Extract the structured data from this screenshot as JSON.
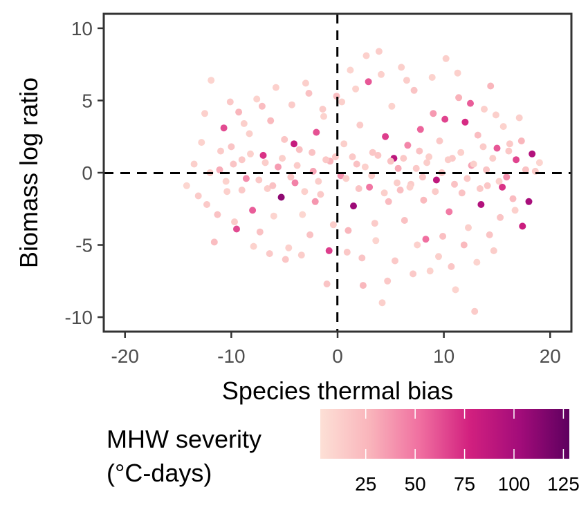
{
  "chart_data": {
    "type": "scatter",
    "title": "",
    "xlabel": "Species thermal bias",
    "ylabel": "Biomass log ratio",
    "xlim": [
      -22,
      22
    ],
    "ylim": [
      -11,
      11
    ],
    "x_ticks": [
      -20,
      -10,
      0,
      10,
      20
    ],
    "x_tick_labels": [
      "-20",
      "-10",
      "0",
      "10",
      "20"
    ],
    "y_ticks": [
      -10,
      -5,
      0,
      5,
      10
    ],
    "y_tick_labels": [
      "-10",
      "-5",
      "0",
      "5",
      "10"
    ],
    "reference_lines": [
      {
        "axis": "x",
        "value": 0,
        "style": "dashed"
      },
      {
        "axis": "y",
        "value": 0,
        "style": "dashed"
      }
    ],
    "grid": false,
    "color_variable": "MHW severity",
    "legend": {
      "title_lines": [
        "MHW severity",
        "(°C-days)"
      ],
      "position": "bottom",
      "range": [
        2,
        128
      ],
      "ticks": [
        25,
        50,
        75,
        100,
        125
      ],
      "tick_labels": [
        "25",
        "50",
        "75",
        "100",
        "125"
      ],
      "gradient": [
        "#fde0d6",
        "#f9b4bb",
        "#f06fa0",
        "#d2207f",
        "#a30c7a",
        "#5e005f"
      ]
    },
    "points": [
      {
        "x": -14.2,
        "y": -0.9,
        "c": 8
      },
      {
        "x": -13.5,
        "y": 0.6,
        "c": 12
      },
      {
        "x": -12.8,
        "y": 2.1,
        "c": 10
      },
      {
        "x": -12.3,
        "y": -2.2,
        "c": 15
      },
      {
        "x": -11.9,
        "y": 6.4,
        "c": 9
      },
      {
        "x": -11.6,
        "y": -4.8,
        "c": 22
      },
      {
        "x": -11.1,
        "y": 0.2,
        "c": 30
      },
      {
        "x": -10.7,
        "y": 3.1,
        "c": 64
      },
      {
        "x": -10.4,
        "y": -1.3,
        "c": 11
      },
      {
        "x": -10.0,
        "y": 1.8,
        "c": 18
      },
      {
        "x": -9.7,
        "y": -3.4,
        "c": 14
      },
      {
        "x": -9.3,
        "y": 4.2,
        "c": 26
      },
      {
        "x": -9.0,
        "y": 0.9,
        "c": 16
      },
      {
        "x": -8.6,
        "y": -0.4,
        "c": 42
      },
      {
        "x": -8.3,
        "y": 2.7,
        "c": 12
      },
      {
        "x": -8.0,
        "y": -2.6,
        "c": 58
      },
      {
        "x": -7.6,
        "y": 5.1,
        "c": 10
      },
      {
        "x": -7.3,
        "y": -4.1,
        "c": 20
      },
      {
        "x": -7.0,
        "y": 1.2,
        "c": 72
      },
      {
        "x": -6.6,
        "y": -1.1,
        "c": 13
      },
      {
        "x": -6.3,
        "y": 3.6,
        "c": 24
      },
      {
        "x": -6.0,
        "y": -3.0,
        "c": 9
      },
      {
        "x": -5.6,
        "y": 0.4,
        "c": 36
      },
      {
        "x": -5.3,
        "y": -1.7,
        "c": 110
      },
      {
        "x": -5.0,
        "y": 2.3,
        "c": 17
      },
      {
        "x": -4.6,
        "y": -5.2,
        "c": 11
      },
      {
        "x": -4.3,
        "y": 4.7,
        "c": 14
      },
      {
        "x": -4.0,
        "y": -0.7,
        "c": 46
      },
      {
        "x": -3.6,
        "y": 1.6,
        "c": 21
      },
      {
        "x": -3.3,
        "y": -2.9,
        "c": 8
      },
      {
        "x": -3.0,
        "y": 6.2,
        "c": 12
      },
      {
        "x": -2.6,
        "y": -4.3,
        "c": 19
      },
      {
        "x": -2.3,
        "y": 0.1,
        "c": 33
      },
      {
        "x": -2.0,
        "y": 2.8,
        "c": 62
      },
      {
        "x": -1.6,
        "y": -1.5,
        "c": 15
      },
      {
        "x": -1.3,
        "y": 3.9,
        "c": 10
      },
      {
        "x": -1.0,
        "y": -7.7,
        "c": 18
      },
      {
        "x": -0.7,
        "y": 0.8,
        "c": 27
      },
      {
        "x": -0.4,
        "y": -3.6,
        "c": 13
      },
      {
        "x": -0.1,
        "y": 5.3,
        "c": 22
      },
      {
        "x": 0.3,
        "y": -0.2,
        "c": 40
      },
      {
        "x": 0.6,
        "y": 2.0,
        "c": 12
      },
      {
        "x": 0.9,
        "y": -5.5,
        "c": 16
      },
      {
        "x": 1.2,
        "y": 7.1,
        "c": 9
      },
      {
        "x": 1.5,
        "y": -2.3,
        "c": 105
      },
      {
        "x": 1.8,
        "y": 0.6,
        "c": 20
      },
      {
        "x": 2.1,
        "y": 3.3,
        "c": 14
      },
      {
        "x": 2.4,
        "y": -7.8,
        "c": 25
      },
      {
        "x": 2.7,
        "y": 8.1,
        "c": 11
      },
      {
        "x": 3.0,
        "y": -1.0,
        "c": 50
      },
      {
        "x": 3.3,
        "y": 1.4,
        "c": 17
      },
      {
        "x": 3.6,
        "y": -4.7,
        "c": 9
      },
      {
        "x": 3.9,
        "y": 8.4,
        "c": 13
      },
      {
        "x": 4.2,
        "y": -9.0,
        "c": 12
      },
      {
        "x": 4.5,
        "y": 2.5,
        "c": 68
      },
      {
        "x": 4.8,
        "y": -2.0,
        "c": 23
      },
      {
        "x": 5.1,
        "y": 4.6,
        "c": 10
      },
      {
        "x": 5.4,
        "y": -6.1,
        "c": 15
      },
      {
        "x": 5.7,
        "y": 0.3,
        "c": 31
      },
      {
        "x": 6.0,
        "y": 7.3,
        "c": 12
      },
      {
        "x": 6.3,
        "y": -3.3,
        "c": 20
      },
      {
        "x": 6.6,
        "y": 1.9,
        "c": 44
      },
      {
        "x": 6.9,
        "y": -0.8,
        "c": 14
      },
      {
        "x": 7.2,
        "y": 5.7,
        "c": 18
      },
      {
        "x": 7.5,
        "y": -5.0,
        "c": 11
      },
      {
        "x": 7.8,
        "y": 3.0,
        "c": 56
      },
      {
        "x": 8.1,
        "y": -1.9,
        "c": 24
      },
      {
        "x": 8.4,
        "y": 0.7,
        "c": 13
      },
      {
        "x": 8.7,
        "y": -6.8,
        "c": 10
      },
      {
        "x": 9.0,
        "y": 4.1,
        "c": 37
      },
      {
        "x": 9.3,
        "y": -0.5,
        "c": 88
      },
      {
        "x": 9.6,
        "y": 2.2,
        "c": 16
      },
      {
        "x": 9.9,
        "y": -4.4,
        "c": 21
      },
      {
        "x": 10.2,
        "y": 7.9,
        "c": 12
      },
      {
        "x": 10.5,
        "y": -2.7,
        "c": 48
      },
      {
        "x": 10.8,
        "y": 1.0,
        "c": 15
      },
      {
        "x": 11.1,
        "y": -8.1,
        "c": 9
      },
      {
        "x": 11.4,
        "y": 5.2,
        "c": 28
      },
      {
        "x": 11.7,
        "y": -1.4,
        "c": 19
      },
      {
        "x": 12.0,
        "y": 3.5,
        "c": 74
      },
      {
        "x": 12.3,
        "y": -3.8,
        "c": 12
      },
      {
        "x": 12.6,
        "y": 0.5,
        "c": 33
      },
      {
        "x": 12.9,
        "y": -9.6,
        "c": 14
      },
      {
        "x": 13.2,
        "y": 2.6,
        "c": 22
      },
      {
        "x": 13.5,
        "y": -2.2,
        "c": 95
      },
      {
        "x": 13.8,
        "y": 4.4,
        "c": 11
      },
      {
        "x": 14.1,
        "y": -0.9,
        "c": 17
      },
      {
        "x": 14.4,
        "y": 6.0,
        "c": 26
      },
      {
        "x": 14.7,
        "y": -5.4,
        "c": 13
      },
      {
        "x": 15.0,
        "y": 1.7,
        "c": 60
      },
      {
        "x": 15.3,
        "y": -3.1,
        "c": 18
      },
      {
        "x": 15.6,
        "y": 3.2,
        "c": 10
      },
      {
        "x": 15.9,
        "y": -0.3,
        "c": 41
      },
      {
        "x": 16.2,
        "y": 2.0,
        "c": 15
      },
      {
        "x": 16.5,
        "y": -1.8,
        "c": 23
      },
      {
        "x": 16.8,
        "y": 0.9,
        "c": 66
      },
      {
        "x": 17.1,
        "y": 3.8,
        "c": 12
      },
      {
        "x": 17.4,
        "y": -3.7,
        "c": 82
      },
      {
        "x": 17.7,
        "y": 0.2,
        "c": 20
      },
      {
        "x": 18.0,
        "y": -2.0,
        "c": 100
      },
      {
        "x": 18.3,
        "y": 1.3,
        "c": 95
      },
      {
        "x": 18.6,
        "y": 0.1,
        "c": 14
      },
      {
        "x": 19.0,
        "y": 0.7,
        "c": 9
      },
      {
        "x": -13.1,
        "y": -1.6,
        "c": 14
      },
      {
        "x": -12.5,
        "y": 4.1,
        "c": 11
      },
      {
        "x": -11.3,
        "y": -2.9,
        "c": 19
      },
      {
        "x": -10.1,
        "y": 4.9,
        "c": 16
      },
      {
        "x": -9.5,
        "y": -3.9,
        "c": 64
      },
      {
        "x": -8.8,
        "y": 3.4,
        "c": 12
      },
      {
        "x": -7.9,
        "y": -5.1,
        "c": 10
      },
      {
        "x": -7.1,
        "y": 4.6,
        "c": 22
      },
      {
        "x": -6.4,
        "y": -5.6,
        "c": 15
      },
      {
        "x": -5.8,
        "y": 5.9,
        "c": 11
      },
      {
        "x": -4.9,
        "y": -6.0,
        "c": 17
      },
      {
        "x": -4.1,
        "y": 2.0,
        "c": 84
      },
      {
        "x": -3.4,
        "y": -5.7,
        "c": 13
      },
      {
        "x": -2.7,
        "y": 5.5,
        "c": 20
      },
      {
        "x": -2.1,
        "y": -2.0,
        "c": 38
      },
      {
        "x": -1.4,
        "y": 4.4,
        "c": 14
      },
      {
        "x": -0.8,
        "y": -5.4,
        "c": 68
      },
      {
        "x": -0.2,
        "y": 1.1,
        "c": 16
      },
      {
        "x": 0.4,
        "y": 4.9,
        "c": 12
      },
      {
        "x": 1.0,
        "y": -4.0,
        "c": 26
      },
      {
        "x": 1.7,
        "y": 5.8,
        "c": 10
      },
      {
        "x": 2.3,
        "y": -5.9,
        "c": 18
      },
      {
        "x": 2.9,
        "y": 6.3,
        "c": 60
      },
      {
        "x": 3.5,
        "y": -3.5,
        "c": 14
      },
      {
        "x": 4.1,
        "y": 6.8,
        "c": 11
      },
      {
        "x": 4.7,
        "y": -7.5,
        "c": 16
      },
      {
        "x": 5.3,
        "y": 1.0,
        "c": 90
      },
      {
        "x": 5.9,
        "y": -1.2,
        "c": 21
      },
      {
        "x": 6.5,
        "y": 6.4,
        "c": 13
      },
      {
        "x": 7.1,
        "y": -7.0,
        "c": 15
      },
      {
        "x": 7.7,
        "y": 1.5,
        "c": 19
      },
      {
        "x": 8.3,
        "y": -4.6,
        "c": 52
      },
      {
        "x": 8.9,
        "y": 6.6,
        "c": 10
      },
      {
        "x": 9.5,
        "y": -5.8,
        "c": 12
      },
      {
        "x": 10.1,
        "y": 3.7,
        "c": 66
      },
      {
        "x": 10.7,
        "y": -6.5,
        "c": 17
      },
      {
        "x": 11.3,
        "y": 6.9,
        "c": 11
      },
      {
        "x": 11.9,
        "y": -5.0,
        "c": 24
      },
      {
        "x": 12.5,
        "y": 4.8,
        "c": 58
      },
      {
        "x": 13.1,
        "y": -6.2,
        "c": 9
      },
      {
        "x": 13.7,
        "y": 1.8,
        "c": 14
      },
      {
        "x": 14.3,
        "y": -4.3,
        "c": 18
      },
      {
        "x": 14.9,
        "y": 4.0,
        "c": 12
      },
      {
        "x": 15.5,
        "y": -1.0,
        "c": 72
      },
      {
        "x": 16.1,
        "y": 1.5,
        "c": 16
      },
      {
        "x": 16.7,
        "y": -2.6,
        "c": 11
      },
      {
        "x": 17.3,
        "y": 2.2,
        "c": 26
      },
      {
        "x": -12.0,
        "y": 0.0,
        "c": 12
      },
      {
        "x": -11.0,
        "y": 1.5,
        "c": 14
      },
      {
        "x": -10.5,
        "y": -0.6,
        "c": 10
      },
      {
        "x": -9.8,
        "y": 0.6,
        "c": 18
      },
      {
        "x": -9.0,
        "y": -1.2,
        "c": 15
      },
      {
        "x": -8.2,
        "y": 1.3,
        "c": 11
      },
      {
        "x": -7.4,
        "y": -0.5,
        "c": 16
      },
      {
        "x": -6.8,
        "y": 0.7,
        "c": 13
      },
      {
        "x": -6.1,
        "y": -0.9,
        "c": 20
      },
      {
        "x": -5.2,
        "y": 1.0,
        "c": 12
      },
      {
        "x": -4.4,
        "y": -0.3,
        "c": 17
      },
      {
        "x": -3.8,
        "y": 0.5,
        "c": 14
      },
      {
        "x": -3.1,
        "y": -1.3,
        "c": 11
      },
      {
        "x": -2.4,
        "y": 1.4,
        "c": 19
      },
      {
        "x": -1.8,
        "y": -0.6,
        "c": 13
      },
      {
        "x": -1.1,
        "y": 0.9,
        "c": 16
      },
      {
        "x": 0.8,
        "y": -0.4,
        "c": 12
      },
      {
        "x": 1.4,
        "y": 1.1,
        "c": 15
      },
      {
        "x": 2.0,
        "y": -1.1,
        "c": 18
      },
      {
        "x": 2.6,
        "y": 0.4,
        "c": 11
      },
      {
        "x": 3.2,
        "y": -0.2,
        "c": 14
      },
      {
        "x": 3.8,
        "y": 1.2,
        "c": 17
      },
      {
        "x": 4.4,
        "y": -1.4,
        "c": 12
      },
      {
        "x": 5.0,
        "y": 0.8,
        "c": 20
      },
      {
        "x": 5.6,
        "y": -0.7,
        "c": 13
      },
      {
        "x": 6.2,
        "y": 1.0,
        "c": 16
      },
      {
        "x": 6.8,
        "y": -1.0,
        "c": 11
      },
      {
        "x": 7.4,
        "y": 0.3,
        "c": 15
      },
      {
        "x": 8.0,
        "y": -0.3,
        "c": 18
      },
      {
        "x": 8.6,
        "y": 1.1,
        "c": 12
      },
      {
        "x": 9.2,
        "y": -1.3,
        "c": 14
      },
      {
        "x": 9.8,
        "y": 0.0,
        "c": 17
      },
      {
        "x": 10.4,
        "y": 0.9,
        "c": 13
      },
      {
        "x": 11.0,
        "y": -0.8,
        "c": 19
      },
      {
        "x": 11.6,
        "y": 1.4,
        "c": 11
      },
      {
        "x": 12.2,
        "y": -0.4,
        "c": 16
      },
      {
        "x": 12.8,
        "y": 0.6,
        "c": 12
      },
      {
        "x": 13.4,
        "y": -1.1,
        "c": 15
      },
      {
        "x": 14.0,
        "y": 0.2,
        "c": 18
      },
      {
        "x": 14.6,
        "y": 1.0,
        "c": 13
      },
      {
        "x": 15.2,
        "y": -0.6,
        "c": 11
      }
    ]
  }
}
